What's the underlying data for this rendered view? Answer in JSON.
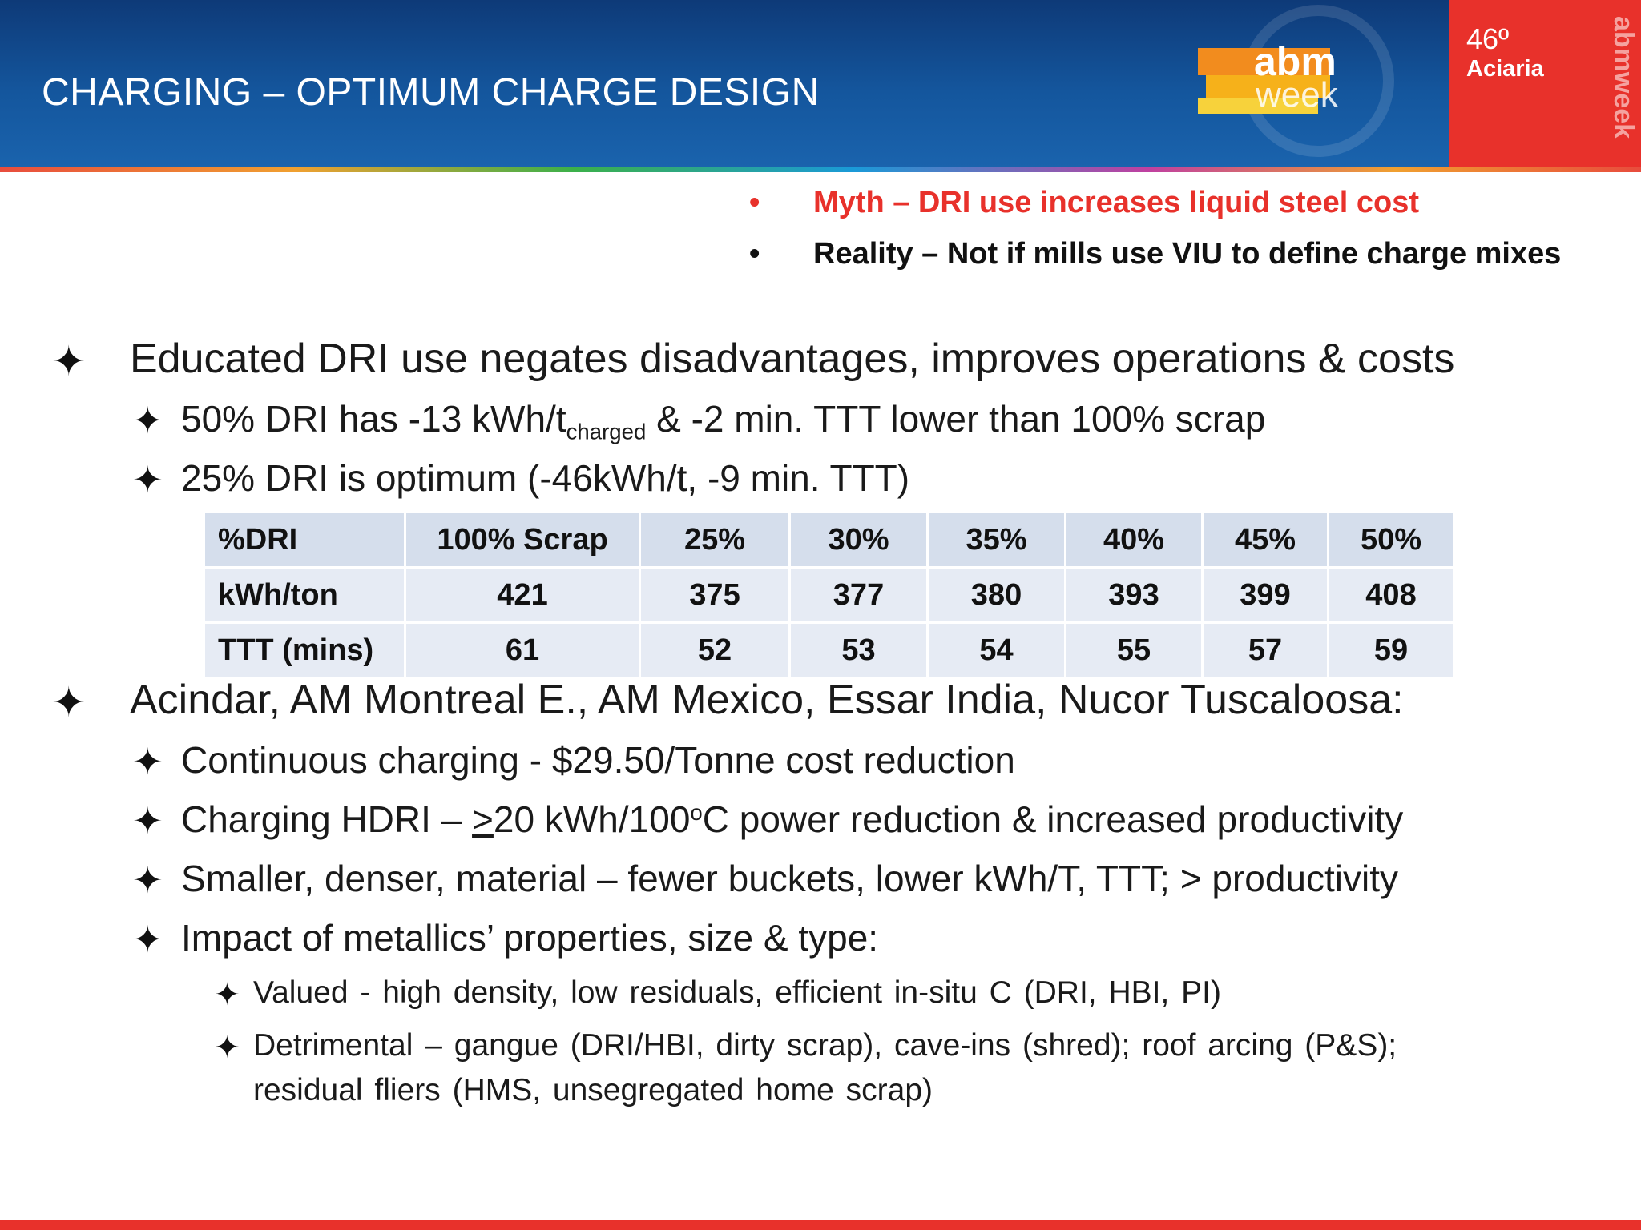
{
  "header": {
    "title": "CHARGING – OPTIMUM CHARGE DESIGN",
    "edition": "46º",
    "edition_sub": "Aciaria",
    "logo_text_1": "abm",
    "logo_text_2": "week",
    "vertical_brand": "abmweek",
    "colors": {
      "header_blue": "#14569d",
      "accent_red": "#e8312b"
    }
  },
  "myths": [
    {
      "bullet": "•",
      "text": "Myth – DRI use increases liquid steel cost"
    },
    {
      "bullet": "•",
      "text": "Reality – Not if mills use VIU to define charge mixes"
    }
  ],
  "content": {
    "star": "✦",
    "b1": "Educated DRI use negates disadvantages, improves operations & costs",
    "b1_1_pre": "50% DRI has -13 kWh/t",
    "b1_1_sub": "charged",
    "b1_1_post": " & -2 min. TTT lower than 100% scrap",
    "b1_2": "25% DRI is optimum (-46kWh/t, -9 min. TTT)",
    "b2": "Acindar, AM Montreal E., AM Mexico, Essar India, Nucor Tuscaloosa:",
    "b2_1": "Continuous charging - $29.50/Tonne cost reduction",
    "b2_2_pre": "Charging HDRI – ",
    "b2_2_ge": ">",
    "b2_2_mid": "20 kWh/100",
    "b2_2_sup": "o",
    "b2_2_post": "C power reduction & increased productivity",
    "b2_3": "Smaller, denser, material – fewer buckets, lower kWh/T, TTT; > productivity",
    "b2_4": "Impact of metallics’ properties, size & type:",
    "b2_4_1": "Valued - high density, low residuals, efficient in-situ C  (DRI, HBI, PI)",
    "b2_4_2a": "Detrimental – gangue (DRI/HBI, dirty scrap), cave-ins (shred); roof arcing (P&S);",
    "b2_4_2b": "residual fliers (HMS, unsegregated home scrap)"
  },
  "table": {
    "header": [
      "%DRI",
      "100%  Scrap",
      "25%",
      "30%",
      "35%",
      "40%",
      "45%",
      "50%"
    ],
    "rows": [
      [
        "kWh/ton",
        "421",
        "375",
        "377",
        "380",
        "393",
        "399",
        "408"
      ],
      [
        "TTT (mins)",
        "61",
        "52",
        "53",
        "54",
        "55",
        "57",
        "59"
      ]
    ]
  }
}
